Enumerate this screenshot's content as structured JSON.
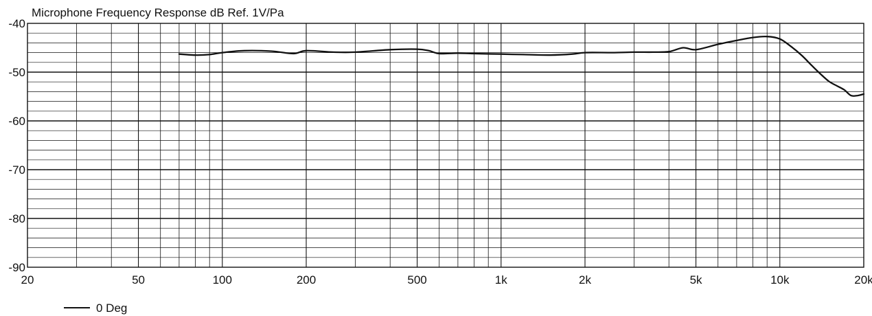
{
  "chart_data": {
    "type": "line",
    "title": "Microphone Frequency Response dB Ref. 1V/Pa",
    "xlabel": "",
    "ylabel": "",
    "x_scale": "log",
    "xlim": [
      20,
      20000
    ],
    "ylim": [
      -90,
      -40
    ],
    "grid": true,
    "legend_position": "bottom-left",
    "x_ticks": [
      {
        "value": 20,
        "label": "20"
      },
      {
        "value": 50,
        "label": "50"
      },
      {
        "value": 100,
        "label": "100"
      },
      {
        "value": 200,
        "label": "200"
      },
      {
        "value": 500,
        "label": "500"
      },
      {
        "value": 1000,
        "label": "1k"
      },
      {
        "value": 2000,
        "label": "2k"
      },
      {
        "value": 5000,
        "label": "5k"
      },
      {
        "value": 10000,
        "label": "10k"
      },
      {
        "value": 20000,
        "label": "20k"
      }
    ],
    "y_ticks": [
      {
        "value": -40,
        "label": "-40"
      },
      {
        "value": -50,
        "label": "-50"
      },
      {
        "value": -60,
        "label": "-60"
      },
      {
        "value": -70,
        "label": "-70"
      },
      {
        "value": -80,
        "label": "-80"
      },
      {
        "value": -90,
        "label": "-90"
      }
    ],
    "series": [
      {
        "name": "0 Deg",
        "color": "#111111",
        "x": [
          70,
          80,
          90,
          100,
          120,
          150,
          180,
          200,
          250,
          300,
          400,
          500,
          550,
          600,
          700,
          800,
          1000,
          1200,
          1500,
          1800,
          2000,
          2500,
          3000,
          3500,
          4000,
          4500,
          5000,
          6000,
          7000,
          8000,
          9000,
          10000,
          11000,
          12000,
          13000,
          14000,
          15000,
          16000,
          17000,
          18000,
          19000,
          20000
        ],
        "y": [
          -46.3,
          -46.5,
          -46.4,
          -46.0,
          -45.6,
          -45.7,
          -46.2,
          -45.6,
          -45.9,
          -45.9,
          -45.4,
          -45.3,
          -45.6,
          -46.2,
          -46.1,
          -46.2,
          -46.3,
          -46.4,
          -46.5,
          -46.3,
          -46.0,
          -46.0,
          -45.9,
          -45.9,
          -45.8,
          -45.0,
          -45.4,
          -44.3,
          -43.5,
          -42.9,
          -42.7,
          -43.2,
          -44.8,
          -46.6,
          -48.6,
          -50.4,
          -51.9,
          -52.8,
          -53.6,
          -54.8,
          -54.8,
          -54.5
        ]
      }
    ]
  }
}
